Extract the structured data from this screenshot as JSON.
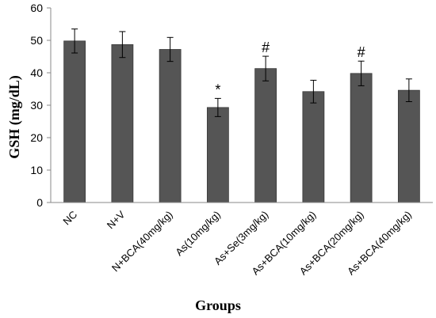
{
  "chart_data": {
    "type": "bar",
    "categories": [
      "NC",
      "N+V",
      "N+BCA(40mg/kg)",
      "As(10mg/kg)",
      "As+Se(3mg/kg)",
      "As+BCA(10mg/kg)",
      "As+BCA(20mg/kg)",
      "As+BCA(40mg/kg)"
    ],
    "values": [
      49.8,
      48.7,
      47.2,
      29.3,
      41.3,
      34.2,
      39.8,
      34.6
    ],
    "errors": [
      3.7,
      4.0,
      3.7,
      2.8,
      3.8,
      3.5,
      3.8,
      3.5
    ],
    "annotations": [
      "",
      "",
      "",
      "*",
      "#",
      "",
      "#",
      ""
    ],
    "title": "",
    "xlabel": "Groups",
    "ylabel": "GSH (mg/dL)",
    "ylim": [
      0,
      60
    ],
    "yticks": [
      "0",
      "10",
      "20",
      "30",
      "40",
      "50",
      "60"
    ],
    "grid": false,
    "legend": "none",
    "bar_color": "#555555"
  }
}
